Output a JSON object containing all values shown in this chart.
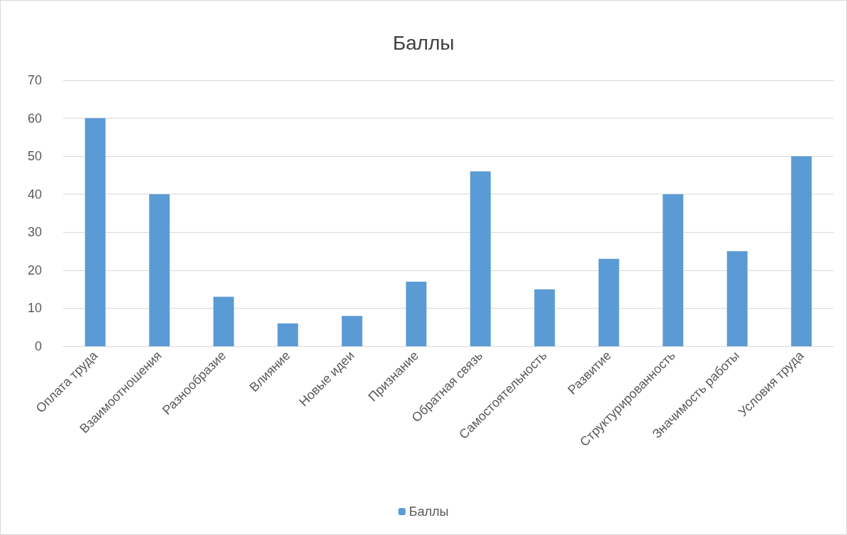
{
  "chart_data": {
    "type": "bar",
    "title": "Баллы",
    "categories": [
      "Оплата труда",
      "Взаимоотношения",
      "Разнообразие",
      "Влияние",
      "Новые идеи",
      "Признание",
      "Обратная связь",
      "Самостоятельность",
      "Развитие",
      "Структурированность",
      "Значимость работы",
      "Условия труда"
    ],
    "series": [
      {
        "name": "Баллы",
        "color": "#5b9bd5",
        "values": [
          60,
          40,
          13,
          6,
          8,
          17,
          46,
          15,
          23,
          40,
          25,
          50
        ]
      }
    ],
    "ylim": [
      0,
      70
    ],
    "yticks": [
      0,
      10,
      20,
      30,
      40,
      50,
      60,
      70
    ],
    "grid": "y",
    "legend": "bottom"
  }
}
